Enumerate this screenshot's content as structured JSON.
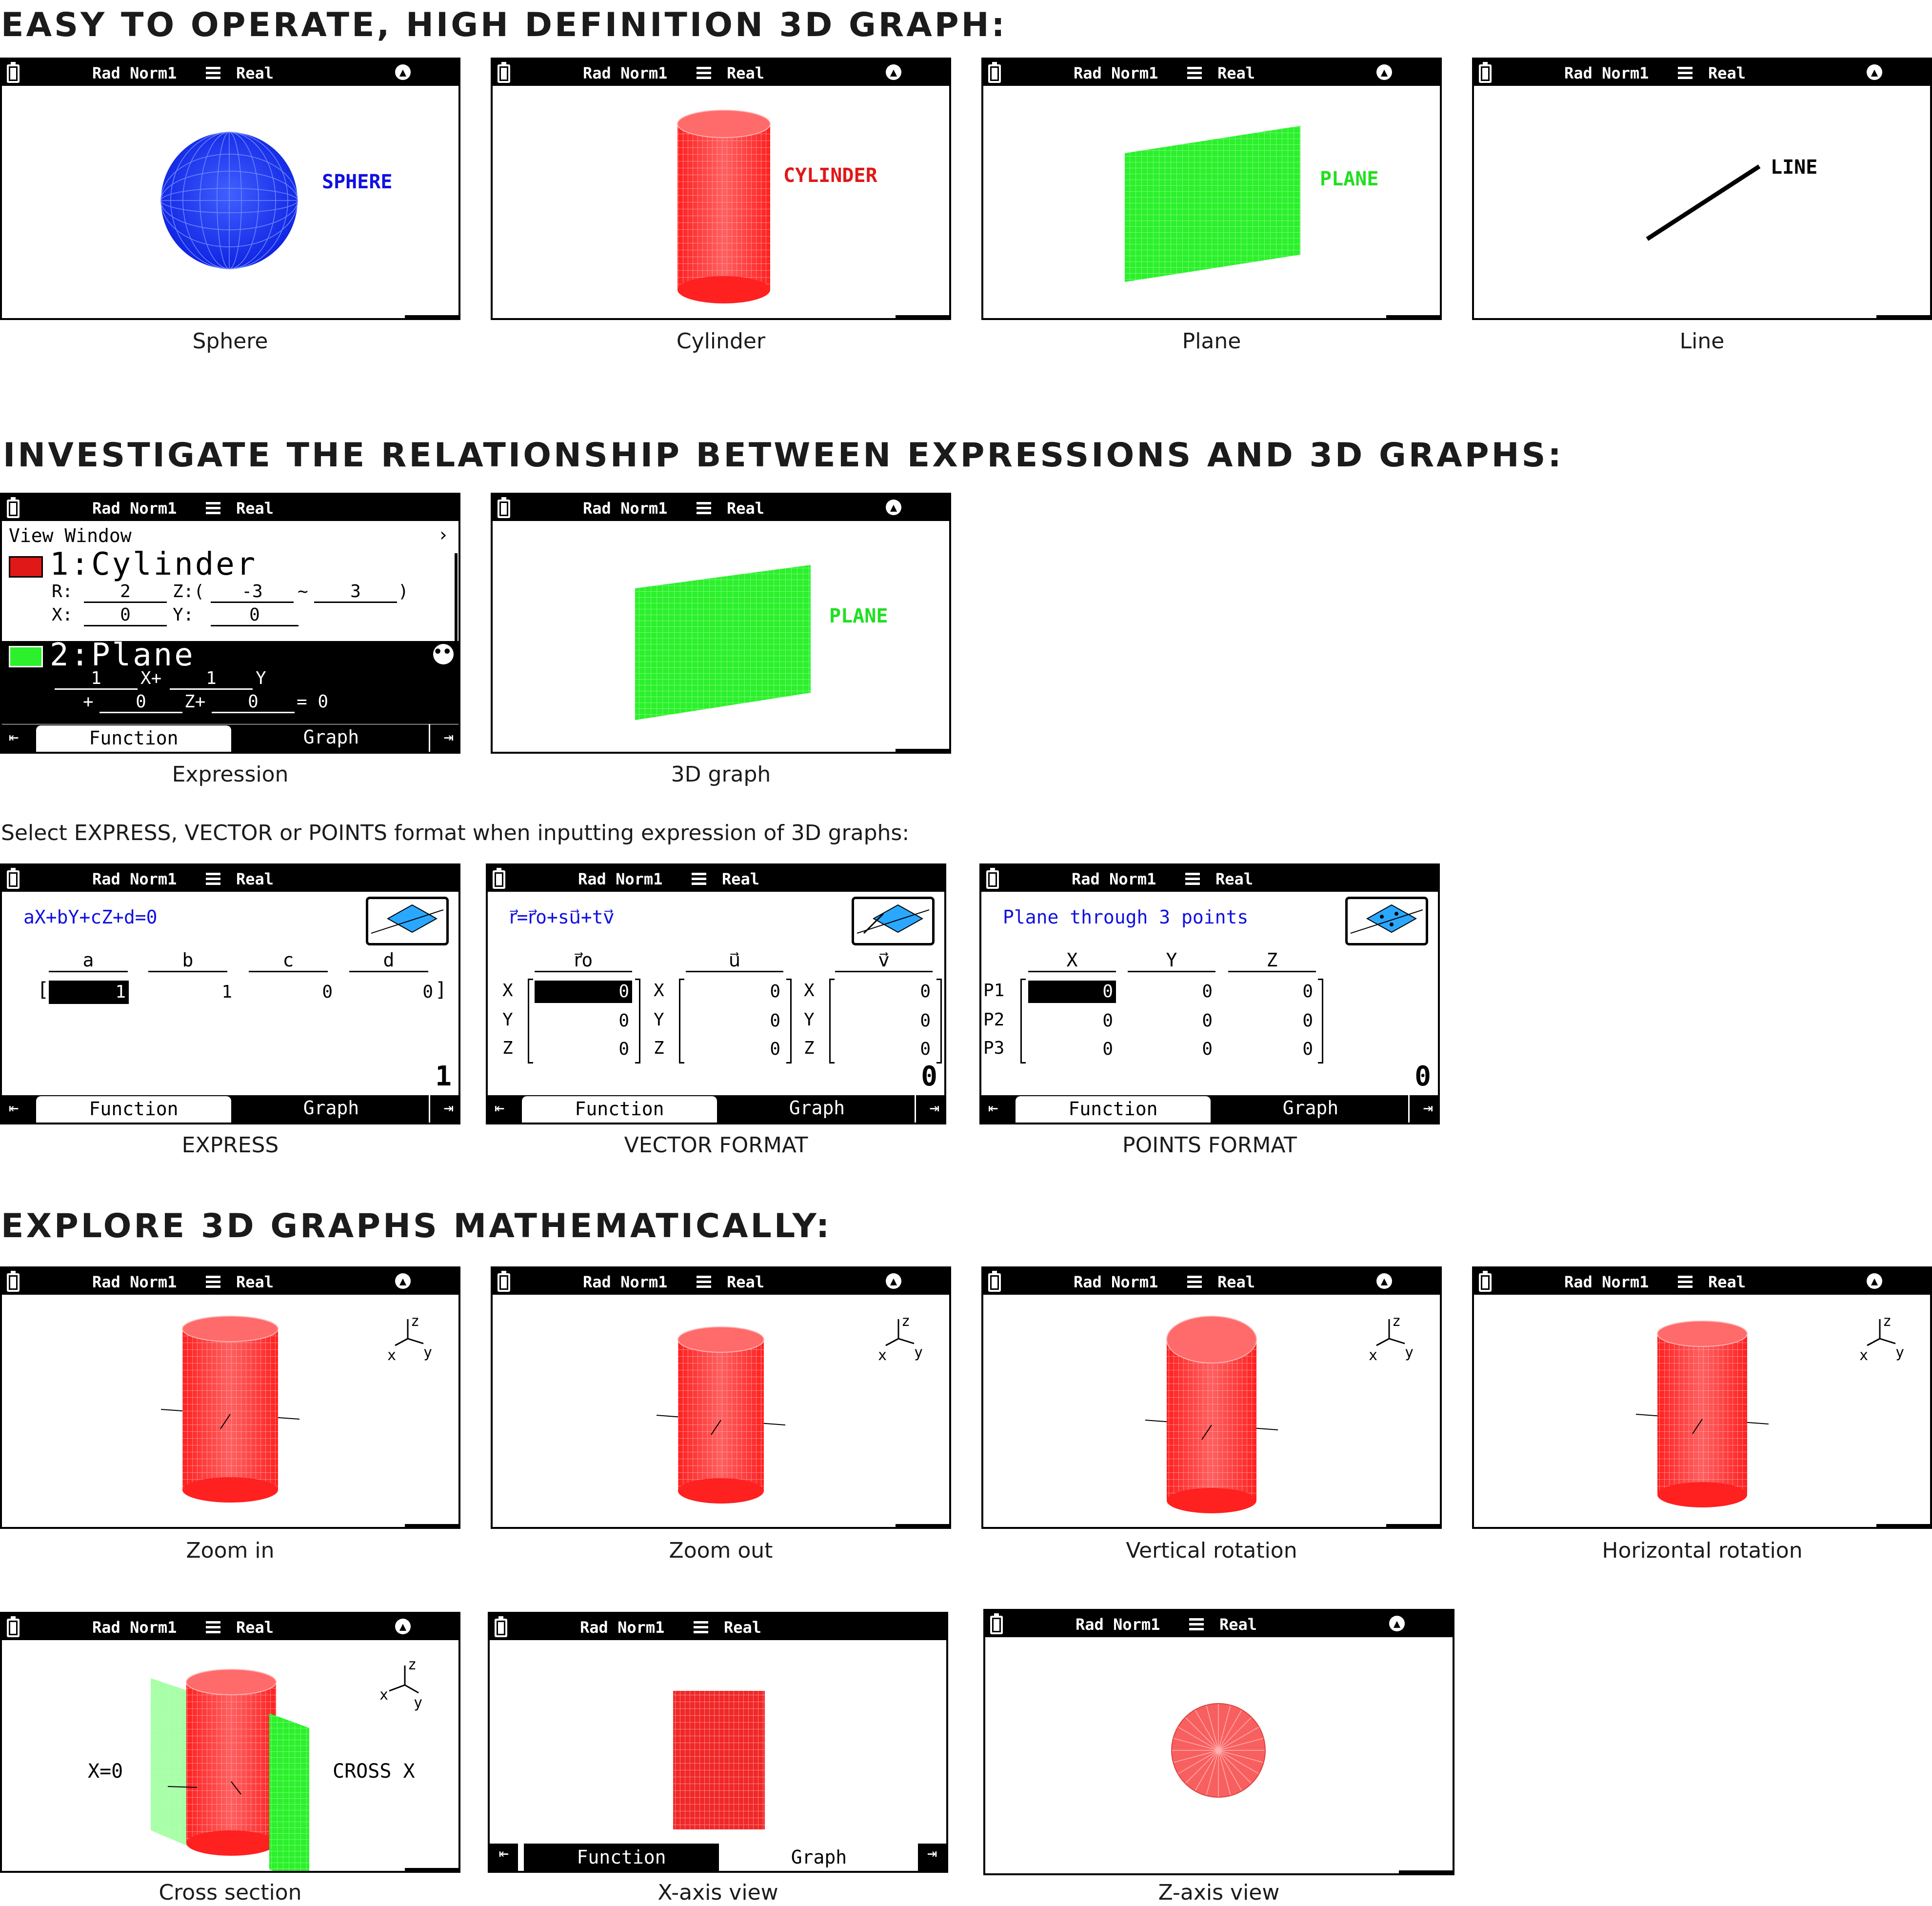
{
  "headings": {
    "easy": "EASY TO OPERATE, HIGH DEFINITION 3D GRAPH:",
    "investigate": "INVESTIGATE THE RELATIONSHIP BETWEEN EXPRESSIONS AND 3D GRAPHS:",
    "select_note": "Select EXPRESS, VECTOR or POINTS format when inputting expression of 3D graphs:",
    "explore": "EXPLORE 3D GRAPHS MATHEMATICALLY:"
  },
  "status": {
    "mode": "Rad Norm1",
    "real": "Real"
  },
  "row1": [
    {
      "caption": "Sphere",
      "label": "SPHERE",
      "color": "#1010e0"
    },
    {
      "caption": "Cylinder",
      "label": "CYLINDER",
      "color": "#e01818"
    },
    {
      "caption": "Plane",
      "label": "PLANE",
      "color": "#20e020"
    },
    {
      "caption": "Line",
      "label": "LINE",
      "color": "#000000"
    }
  ],
  "expression": {
    "caption": "Expression",
    "menu_title": "View Window",
    "cyl": {
      "title": "1:Cylinder",
      "r_label": "R:",
      "r": "2",
      "z_label": "Z:(",
      "z_from": "-3",
      "tilde": "~",
      "z_to": "3",
      "close": ")",
      "x_label": "X:",
      "x": "0",
      "y_label": "Y:",
      "y": "0"
    },
    "plane": {
      "title": "2:Plane",
      "a": "1",
      "xplus": "X+",
      "b": "1",
      "ylab": "Y",
      "plus": "+",
      "c": "0",
      "zplus": "Z+",
      "d": "0",
      "eq": "= 0"
    }
  },
  "graph3d": {
    "caption": "3D graph",
    "label": "PLANE"
  },
  "tabs": {
    "function": "Function",
    "graph": "Graph"
  },
  "express": {
    "caption": "EXPRESS",
    "formula": "aX+bY+cZ+d=0",
    "headers": [
      "a",
      "b",
      "c",
      "d"
    ],
    "values": [
      "1",
      "1",
      "0",
      "0"
    ],
    "count": "1"
  },
  "vector": {
    "caption": "VECTOR FORMAT",
    "formula": "r⃗=r⃗o+su⃗+tv⃗",
    "headers": [
      "r⃗o",
      "u⃗",
      "v⃗"
    ],
    "rows": [
      "X",
      "Y",
      "Z"
    ],
    "values": [
      [
        "0",
        "0",
        "0"
      ],
      [
        "0",
        "0",
        "0"
      ],
      [
        "0",
        "0",
        "0"
      ]
    ],
    "count": "0"
  },
  "points": {
    "caption": "POINTS FORMAT",
    "formula": "Plane through 3 points",
    "headers": [
      "X",
      "Y",
      "Z"
    ],
    "rows": [
      "P1",
      "P2",
      "P3"
    ],
    "values": [
      [
        "0",
        "0",
        "0"
      ],
      [
        "0",
        "0",
        "0"
      ],
      [
        "0",
        "0",
        "0"
      ]
    ],
    "count": "0"
  },
  "explore": [
    {
      "caption": "Zoom in"
    },
    {
      "caption": "Zoom out"
    },
    {
      "caption": "Vertical rotation"
    },
    {
      "caption": "Horizontal rotation"
    }
  ],
  "explore2": [
    {
      "caption": "Cross section",
      "left_label": "X=0",
      "right_label": "CROSS X"
    },
    {
      "caption": "X-axis view"
    },
    {
      "caption": "Z-axis view"
    }
  ],
  "axes": {
    "z": "z",
    "x": "x",
    "y": "y"
  },
  "colors": {
    "blue": "#1a2ef0",
    "red": "#f02020",
    "green": "#2cf02c",
    "accent_blue": "#1010e0"
  }
}
